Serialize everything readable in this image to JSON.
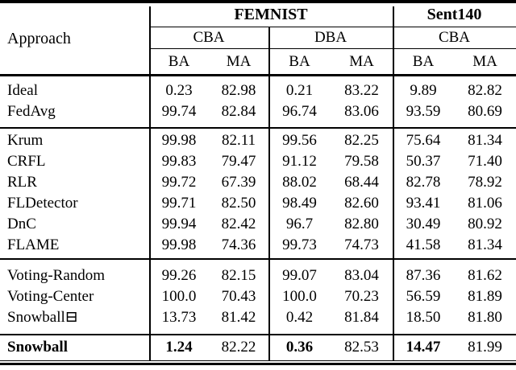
{
  "page": {
    "background_color": "#ffffff",
    "text_color": "#000000",
    "rule_color": "#000000"
  },
  "table": {
    "corner_label": "Approach",
    "col_groups": [
      {
        "label": "FEMNIST"
      },
      {
        "label": "Sent140"
      }
    ],
    "subgroups": [
      "CBA",
      "DBA",
      "CBA"
    ],
    "metric_headers": [
      "BA",
      "MA",
      "BA",
      "MA",
      "BA",
      "MA"
    ],
    "sections": [
      {
        "rows": [
          {
            "label": "Ideal",
            "values": [
              "0.23",
              "82.98",
              "0.21",
              "83.22",
              "9.89",
              "82.82"
            ]
          },
          {
            "label": "FedAvg",
            "values": [
              "99.74",
              "82.84",
              "96.74",
              "83.06",
              "93.59",
              "80.69"
            ]
          }
        ]
      },
      {
        "rows": [
          {
            "label": "Krum",
            "values": [
              "99.98",
              "82.11",
              "99.56",
              "82.25",
              "75.64",
              "81.34"
            ]
          },
          {
            "label": "CRFL",
            "values": [
              "99.83",
              "79.47",
              "91.12",
              "79.58",
              "50.37",
              "71.40"
            ]
          },
          {
            "label": "RLR",
            "values": [
              "99.72",
              "67.39",
              "88.02",
              "68.44",
              "82.78",
              "78.92"
            ]
          },
          {
            "label": "FLDetector",
            "values": [
              "99.71",
              "82.50",
              "98.49",
              "82.60",
              "93.41",
              "81.06"
            ]
          },
          {
            "label": "DnC",
            "values": [
              "99.94",
              "82.42",
              "96.7",
              "82.80",
              "30.49",
              "80.92"
            ]
          },
          {
            "label": "FLAME",
            "values": [
              "99.98",
              "74.36",
              "99.73",
              "74.73",
              "41.58",
              "81.34"
            ]
          }
        ]
      },
      {
        "rows": [
          {
            "label": "Voting-Random",
            "values": [
              "99.26",
              "82.15",
              "99.07",
              "83.04",
              "87.36",
              "81.62"
            ]
          },
          {
            "label": "Voting-Center",
            "values": [
              "100.0",
              "70.43",
              "100.0",
              "70.23",
              "56.59",
              "81.89"
            ]
          },
          {
            "label": "Snowball⊟",
            "values": [
              "13.73",
              "81.42",
              "0.42",
              "81.84",
              "18.50",
              "81.80"
            ]
          }
        ]
      },
      {
        "rows": [
          {
            "label": "Snowball",
            "values": [
              "1.24",
              "82.22",
              "0.36",
              "82.53",
              "14.47",
              "81.99"
            ],
            "bold_label": true,
            "bold_value_indices": [
              0,
              2,
              4
            ]
          }
        ]
      }
    ]
  }
}
